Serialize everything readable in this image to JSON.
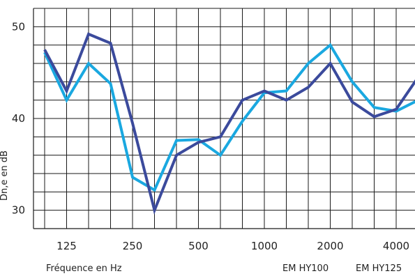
{
  "chart_data": {
    "type": "line",
    "xlabel": "Fréquence en Hz",
    "ylabel": "Dn,e en dB",
    "x": [
      "100",
      "125",
      "160",
      "200",
      "250",
      "315",
      "400",
      "500",
      "630",
      "800",
      "1000",
      "1250",
      "1600",
      "2000",
      "2500",
      "3150",
      "4000",
      "5000"
    ],
    "x_tick_labels": [
      "125",
      "250",
      "500",
      "1000",
      "2000",
      "4000"
    ],
    "y_tick_labels": [
      "30",
      "40",
      "50"
    ],
    "ylim": [
      28,
      52
    ],
    "grid": true,
    "series": [
      {
        "name": "EM HY100",
        "color": "#3b4a9c",
        "values": [
          47.5,
          43,
          49.2,
          48.2,
          39.5,
          30,
          36,
          37.4,
          38,
          42,
          43,
          42,
          43.4,
          46,
          41.8,
          40.2,
          41,
          44.5
        ]
      },
      {
        "name": "EM HY125",
        "color": "#1aa8e0",
        "values": [
          47.2,
          42,
          46,
          43.8,
          33.6,
          32.2,
          37.6,
          37.7,
          36,
          39.7,
          42.8,
          43,
          46,
          48,
          44,
          41.2,
          40.8,
          42
        ]
      }
    ]
  }
}
